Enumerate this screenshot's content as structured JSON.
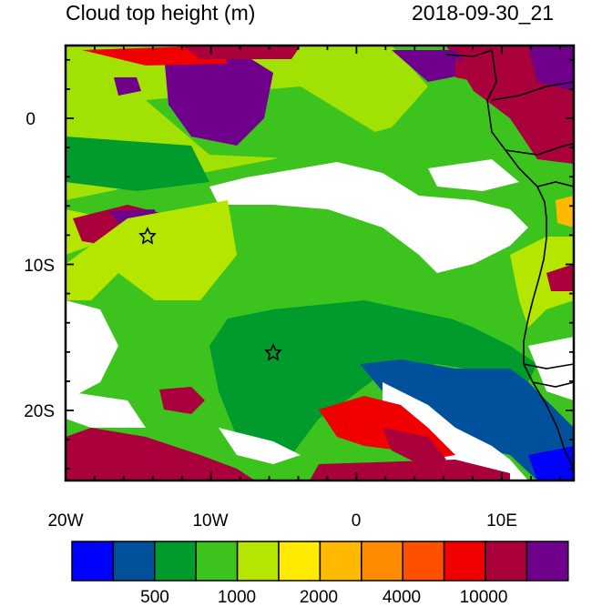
{
  "title_left": "Cloud top height (m)",
  "title_right": "2018-09-30_21",
  "lon_ticks": [
    "20W",
    "10W",
    "0",
    "10E"
  ],
  "lat_ticks": [
    "0",
    "10S",
    "20S"
  ],
  "colorbar": {
    "colors": [
      "#0000ff",
      "#00509b",
      "#009b2d",
      "#3cc31e",
      "#b4e600",
      "#ffea00",
      "#ffb900",
      "#ff8c00",
      "#ff5000",
      "#f00000",
      "#aa003c",
      "#6e008c"
    ],
    "labels": [
      "500",
      "1000",
      "2000",
      "4000",
      "10000"
    ]
  },
  "markers": [
    "star",
    "star"
  ]
}
